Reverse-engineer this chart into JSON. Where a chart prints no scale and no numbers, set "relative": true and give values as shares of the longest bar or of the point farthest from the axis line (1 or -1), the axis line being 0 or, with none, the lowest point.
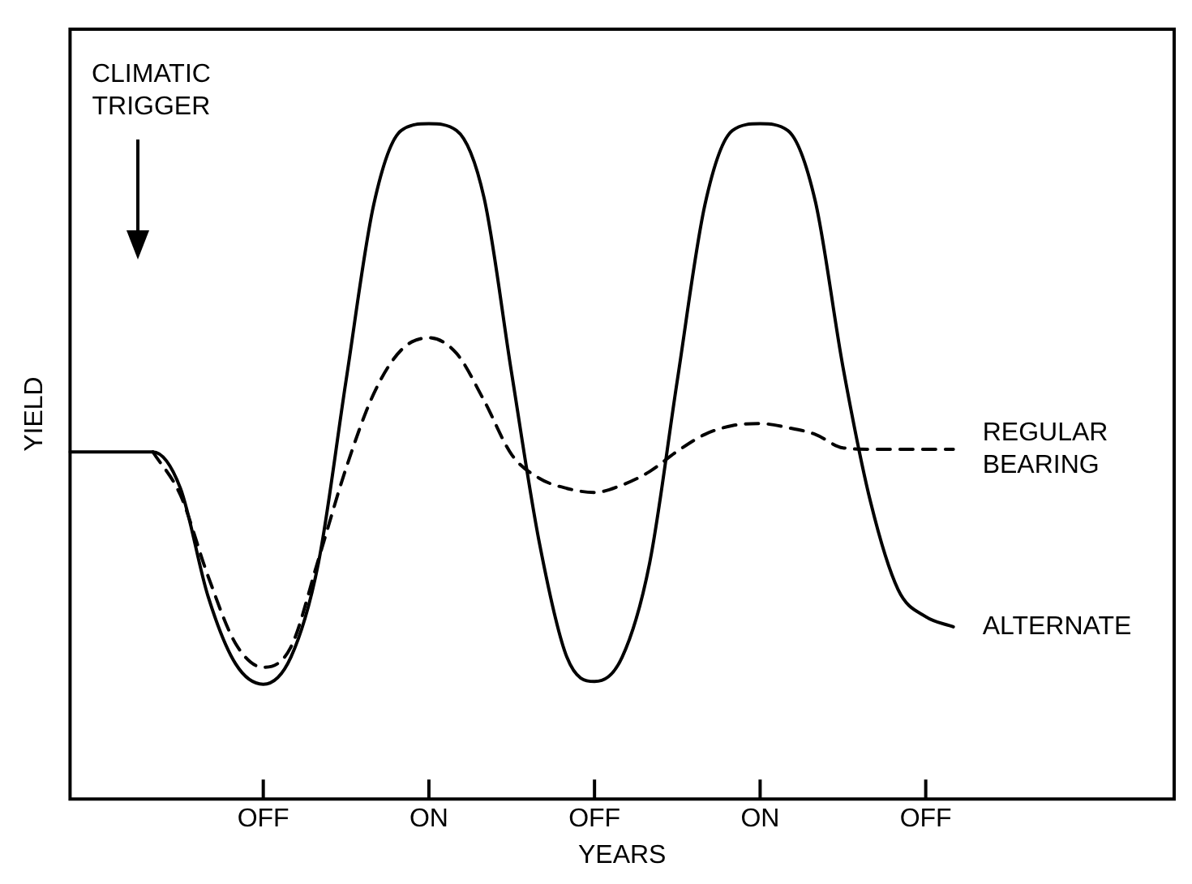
{
  "chart_data": {
    "type": "line",
    "relative": true,
    "xlabel": "YEARS",
    "ylabel": "YIELD",
    "legend": false,
    "grid": false,
    "marker": "none",
    "categories": [
      null,
      null,
      null,
      null,
      null,
      null,
      null,
      "OFF",
      null,
      null,
      null,
      null,
      null,
      "ON",
      null,
      null,
      null,
      null,
      null,
      "OFF",
      null,
      null,
      null,
      null,
      null,
      "ON",
      null,
      null,
      null,
      null,
      null,
      "OFF",
      null,
      null,
      null,
      null,
      null,
      null,
      null,
      null,
      null
    ],
    "annotations": [
      "CLIMATIC TRIGGER"
    ],
    "series": [
      {
        "name": "ALTERNATE",
        "color": "#000000",
        "line_style": "solid",
        "values": [
          0.514,
          0.514,
          0.514,
          0.514,
          0.46,
          0.3,
          0.2,
          0.17,
          0.21,
          0.35,
          0.62,
          0.88,
          0.99,
          1,
          0.99,
          0.89,
          0.63,
          0.38,
          0.21,
          0.174,
          0.21,
          0.35,
          0.62,
          0.88,
          0.99,
          1,
          0.99,
          0.885,
          0.64,
          0.44,
          0.31,
          0.27,
          0.255,
          null,
          null,
          null,
          null,
          null,
          null,
          null,
          null
        ]
      },
      {
        "name": "REGULAR BEARING",
        "color": "#000000",
        "line_style": "dashed",
        "values": [
          null,
          null,
          null,
          0.514,
          0.45,
          0.33,
          0.23,
          0.195,
          0.225,
          0.355,
          0.49,
          0.6,
          0.665,
          0.683,
          0.66,
          0.59,
          0.51,
          0.475,
          0.46,
          0.454,
          0.465,
          0.485,
          0.515,
          0.54,
          0.553,
          0.556,
          0.55,
          0.54,
          0.52,
          0.518,
          0.518,
          0.518,
          0.518,
          null,
          null,
          null,
          null,
          null,
          null,
          null,
          null
        ]
      }
    ]
  }
}
